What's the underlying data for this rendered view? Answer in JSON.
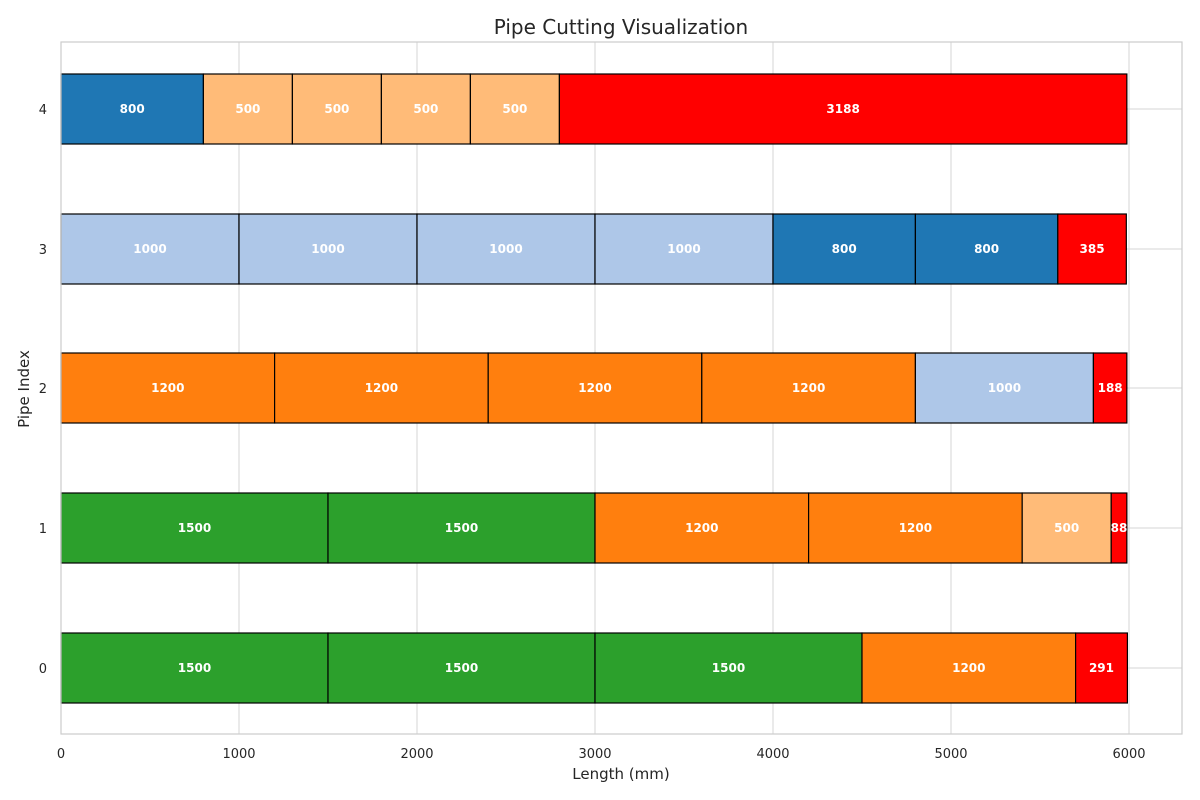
{
  "chart_data": {
    "type": "bar",
    "orientation": "horizontal",
    "stacked": true,
    "title": "Pipe Cutting Visualization",
    "xlabel": "Length (mm)",
    "ylabel": "Pipe Index",
    "xlim": [
      0,
      6300
    ],
    "x_ticks": [
      0,
      1000,
      2000,
      3000,
      4000,
      5000,
      6000
    ],
    "y_ticks": [
      0,
      1,
      2,
      3,
      4
    ],
    "grid": true,
    "legend": "none",
    "colors": {
      "1500": "#2ca02c",
      "1200": "#ff7f0e",
      "1000": "#aec7e8",
      "800": "#1f77b4",
      "500": "#ffbb78",
      "waste": "#ff0000"
    },
    "pipes": [
      {
        "index": 0,
        "segments": [
          {
            "length": 1500,
            "label": "1500",
            "kind": "1500"
          },
          {
            "length": 1500,
            "label": "1500",
            "kind": "1500"
          },
          {
            "length": 1500,
            "label": "1500",
            "kind": "1500"
          },
          {
            "length": 1200,
            "label": "1200",
            "kind": "1200"
          },
          {
            "length": 291,
            "label": "291",
            "kind": "waste"
          }
        ]
      },
      {
        "index": 1,
        "segments": [
          {
            "length": 1500,
            "label": "1500",
            "kind": "1500"
          },
          {
            "length": 1500,
            "label": "1500",
            "kind": "1500"
          },
          {
            "length": 1200,
            "label": "1200",
            "kind": "1200"
          },
          {
            "length": 1200,
            "label": "1200",
            "kind": "1200"
          },
          {
            "length": 500,
            "label": "500",
            "kind": "500"
          },
          {
            "length": 88,
            "label": "88",
            "kind": "waste"
          }
        ]
      },
      {
        "index": 2,
        "segments": [
          {
            "length": 1200,
            "label": "1200",
            "kind": "1200"
          },
          {
            "length": 1200,
            "label": "1200",
            "kind": "1200"
          },
          {
            "length": 1200,
            "label": "1200",
            "kind": "1200"
          },
          {
            "length": 1200,
            "label": "1200",
            "kind": "1200"
          },
          {
            "length": 1000,
            "label": "1000",
            "kind": "1000"
          },
          {
            "length": 188,
            "label": "188",
            "kind": "waste"
          }
        ]
      },
      {
        "index": 3,
        "segments": [
          {
            "length": 1000,
            "label": "1000",
            "kind": "1000"
          },
          {
            "length": 1000,
            "label": "1000",
            "kind": "1000"
          },
          {
            "length": 1000,
            "label": "1000",
            "kind": "1000"
          },
          {
            "length": 1000,
            "label": "1000",
            "kind": "1000"
          },
          {
            "length": 800,
            "label": "800",
            "kind": "800"
          },
          {
            "length": 800,
            "label": "800",
            "kind": "800"
          },
          {
            "length": 385,
            "label": "385",
            "kind": "waste"
          }
        ]
      },
      {
        "index": 4,
        "segments": [
          {
            "length": 800,
            "label": "800",
            "kind": "800"
          },
          {
            "length": 500,
            "label": "500",
            "kind": "500"
          },
          {
            "length": 500,
            "label": "500",
            "kind": "500"
          },
          {
            "length": 500,
            "label": "500",
            "kind": "500"
          },
          {
            "length": 500,
            "label": "500",
            "kind": "500"
          },
          {
            "length": 3188,
            "label": "3188",
            "kind": "waste"
          }
        ]
      }
    ]
  }
}
